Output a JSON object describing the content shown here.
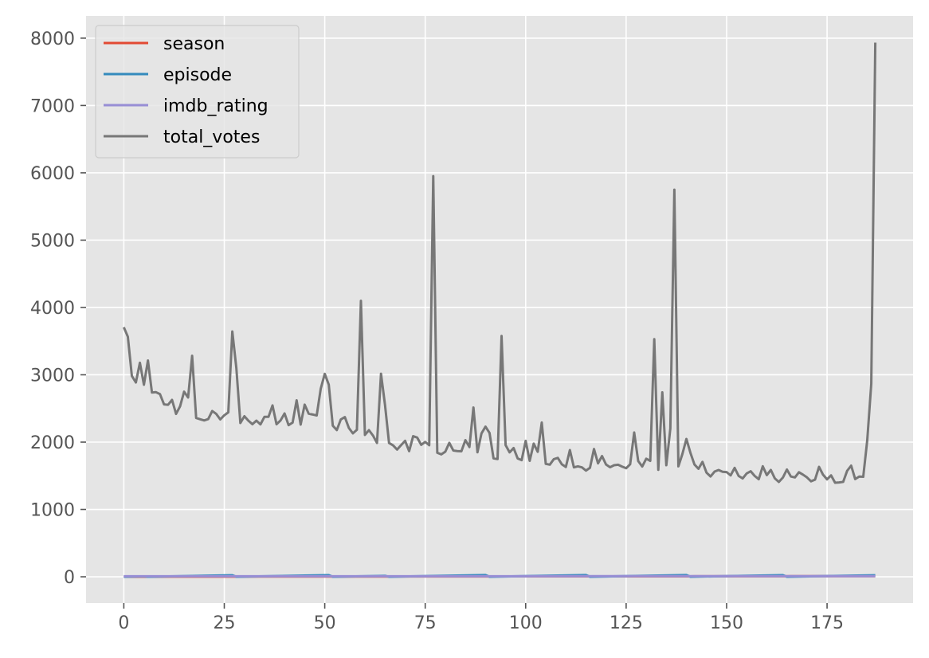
{
  "chart_data": {
    "type": "line",
    "title": "",
    "xlabel": "",
    "ylabel": "",
    "xlim": [
      -9.4,
      196.4
    ],
    "ylim": [
      -390,
      8330
    ],
    "x_ticks": [
      0,
      25,
      50,
      75,
      100,
      125,
      150,
      175
    ],
    "y_ticks": [
      0,
      1000,
      2000,
      3000,
      4000,
      5000,
      6000,
      7000,
      8000
    ],
    "grid": true,
    "legend_position": "top-left",
    "style": "ggplot",
    "colors": {
      "season": "#E24A33",
      "episode": "#348ABD",
      "imdb_rating": "#988ED5",
      "total_votes": "#777777",
      "axes_bg": "#E5E5E5",
      "grid": "#FFFFFF"
    },
    "series": [
      {
        "name": "season",
        "x": [
          0,
          6,
          7,
          28,
          29,
          52,
          53,
          66,
          67,
          91,
          92,
          116,
          117,
          141,
          142,
          165,
          166,
          187
        ],
        "values": [
          1,
          1,
          2,
          2,
          3,
          3,
          4,
          4,
          5,
          5,
          6,
          6,
          7,
          7,
          8,
          8,
          9,
          9
        ]
      },
      {
        "name": "episode",
        "x": [
          0,
          5,
          6,
          27,
          28,
          51,
          52,
          65,
          66,
          90,
          91,
          115,
          116,
          140,
          141,
          164,
          165,
          187
        ],
        "values": [
          1,
          6,
          1,
          22,
          1,
          24,
          1,
          14,
          1,
          25,
          1,
          25,
          1,
          25,
          1,
          24,
          1,
          23
        ]
      },
      {
        "name": "imdb_rating",
        "x": [
          0,
          187
        ],
        "values": [
          8.0,
          9.0
        ]
      },
      {
        "name": "total_votes",
        "x": [
          0,
          1,
          2,
          3,
          4,
          5,
          6,
          7,
          8,
          9,
          10,
          11,
          12,
          13,
          14,
          15,
          16,
          17,
          18,
          19,
          20,
          21,
          22,
          23,
          24,
          25,
          26,
          27,
          28,
          29,
          30,
          31,
          32,
          33,
          34,
          35,
          36,
          37,
          38,
          39,
          40,
          41,
          42,
          43,
          44,
          45,
          46,
          47,
          48,
          49,
          50,
          51,
          52,
          53,
          54,
          55,
          56,
          57,
          58,
          59,
          60,
          61,
          62,
          63,
          64,
          65,
          66,
          67,
          68,
          69,
          70,
          71,
          72,
          73,
          74,
          75,
          76,
          77,
          78,
          79,
          80,
          81,
          82,
          83,
          84,
          85,
          86,
          87,
          88,
          89,
          90,
          91,
          92,
          93,
          94,
          95,
          96,
          97,
          98,
          99,
          100,
          101,
          102,
          103,
          104,
          105,
          106,
          107,
          108,
          109,
          110,
          111,
          112,
          113,
          114,
          115,
          116,
          117,
          118,
          119,
          120,
          121,
          122,
          123,
          124,
          125,
          126,
          127,
          128,
          129,
          130,
          131,
          132,
          133,
          134,
          135,
          136,
          137,
          138,
          139,
          140,
          141,
          142,
          143,
          144,
          145,
          146,
          147,
          148,
          149,
          150,
          151,
          152,
          153,
          154,
          155,
          156,
          157,
          158,
          159,
          160,
          161,
          162,
          163,
          164,
          165,
          166,
          167,
          168,
          169,
          170,
          171,
          172,
          173,
          174,
          175,
          176,
          177,
          178,
          179,
          180,
          181,
          182,
          183,
          184,
          185,
          186,
          187
        ],
        "values": [
          3706,
          3566,
          2983,
          2886,
          3179,
          2852,
          3213,
          2736,
          2742,
          2713,
          2561,
          2554,
          2627,
          2419,
          2532,
          2749,
          2663,
          3282,
          2359,
          2340,
          2322,
          2342,
          2462,
          2419,
          2337,
          2399,
          2442,
          3643,
          3101,
          2284,
          2385,
          2318,
          2266,
          2319,
          2263,
          2376,
          2375,
          2545,
          2265,
          2322,
          2426,
          2252,
          2290,
          2621,
          2260,
          2557,
          2422,
          2410,
          2396,
          2793,
          3014,
          2853,
          2244,
          2179,
          2337,
          2372,
          2210,
          2130,
          2183,
          4098,
          2107,
          2178,
          2098,
          1987,
          3016,
          2551,
          1987,
          1952,
          1889,
          1956,
          2019,
          1866,
          2088,
          2068,
          1960,
          2003,
          1954,
          5951,
          1842,
          1818,
          1858,
          1989,
          1875,
          1867,
          1864,
          2029,
          1927,
          2514,
          1849,
          2129,
          2230,
          2137,
          1759,
          1749,
          3576,
          1956,
          1848,
          1912,
          1758,
          1732,
          2019,
          1722,
          1978,
          1856,
          2291,
          1677,
          1665,
          1747,
          1766,
          1670,
          1631,
          1882,
          1625,
          1640,
          1625,
          1577,
          1618,
          1898,
          1685,
          1793,
          1667,
          1627,
          1657,
          1664,
          1636,
          1612,
          1671,
          2143,
          1719,
          1637,
          1754,
          1721,
          3530,
          1589,
          2739,
          1657,
          2203,
          5749,
          1640,
          1824,
          2047,
          1840,
          1668,
          1604,
          1707,
          1547,
          1490,
          1562,
          1586,
          1559,
          1555,
          1506,
          1617,
          1497,
          1461,
          1535,
          1567,
          1497,
          1449,
          1641,
          1510,
          1587,
          1461,
          1408,
          1473,
          1593,
          1489,
          1476,
          1553,
          1517,
          1476,
          1418,
          1442,
          1633,
          1516,
          1447,
          1506,
          1397,
          1401,
          1409,
          1574,
          1651,
          1451,
          1488,
          1485,
          2029,
          2866,
          7934
        ]
      }
    ]
  }
}
